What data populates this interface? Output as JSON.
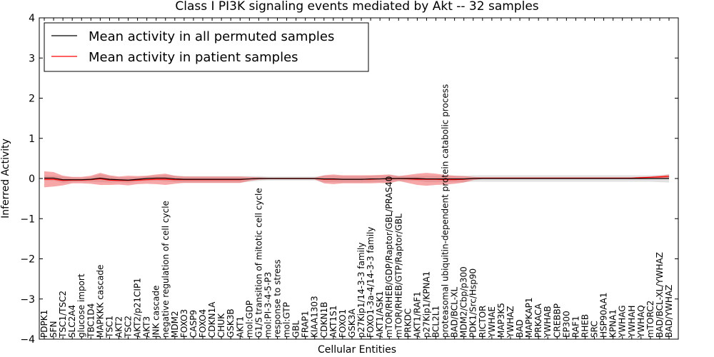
{
  "chart_data": {
    "type": "line",
    "title": "Class I PI3K signaling events mediated by Akt -- 32 samples",
    "xlabel": "Cellular Entities",
    "ylabel": "Inferred Activity",
    "ylim": [
      -4,
      4
    ],
    "yticks": [
      4,
      3,
      2,
      1,
      0,
      -1,
      -2,
      -3,
      -4
    ],
    "ytick_labels": [
      "4",
      "3",
      "2",
      "1",
      "0",
      "−1",
      "−2",
      "−3",
      "−4"
    ],
    "legend_position": "top-left",
    "categories": [
      "PDPK1",
      "SFN",
      "TSC1/TSC2",
      "SLC2A4",
      "glucose import",
      "TBC1D4",
      "MAPKKK cascade",
      "TSC1",
      "AKT2",
      "TSC2",
      "AKT2/p21CIP1",
      "AKT3",
      "JNK cascade",
      "negative regulation of cell cycle",
      "MDM2",
      "FOXO3",
      "CASP9",
      "FOXO4",
      "CDKN1A",
      "CHUK",
      "GSK3B",
      "AKT1",
      "mol:GDP",
      "G1/S transition of mitotic cell cycle",
      "mol:PI-3-4-5-P3",
      "response to stress",
      "mol:GTP",
      "GBL",
      "FRAP1",
      "KIAA1303",
      "CDKN1B",
      "AKT1S1",
      "FOXO1",
      "GSK3A",
      "p27Kip1/14-3-3 family",
      "FOXO1-3a-4/14-3-3 family",
      "AKT1/ASK1",
      "mTOR/RHEB/GDP/Raptor/GBL/PRAS40",
      "mTOR/RHEB/GTP/Raptor/GBL",
      "PRKDC",
      "AKT1/RAF1",
      "p27Kip1/KPNA1",
      "BCL2L1",
      "proteasomal ubiquitin-dependent protein catabolic process",
      "BAD/BCL-XL",
      "MDM2/Cbp/p300",
      "PDK1/Src/Hsp90",
      "RICTOR",
      "YWHAE",
      "MAP3K5",
      "YWHAZ",
      "BAD",
      "MAPKAP1",
      "PRKACA",
      "YWHAB",
      "CREBBP",
      "EP300",
      "RAF1",
      "RHEB",
      "SRC",
      "HSP90AA1",
      "KPNA1",
      "YWHAG",
      "YWHAH",
      "YWHAQ",
      "mTORC2",
      "BAD/BCL-XL/YWHAZ",
      "BAD/YWHAZ"
    ],
    "series": [
      {
        "name": "Mean activity in all permuted samples",
        "color": "#000000",
        "values": [
          0.01,
          0.01,
          -0.03,
          -0.03,
          -0.03,
          -0.02,
          0.01,
          -0.02,
          -0.03,
          -0.04,
          -0.02,
          0.0,
          0.01,
          0.01,
          -0.01,
          -0.02,
          -0.02,
          -0.02,
          -0.02,
          -0.02,
          -0.02,
          -0.02,
          -0.01,
          0.0,
          0.0,
          0.0,
          0.0,
          0.0,
          0.0,
          0.0,
          -0.01,
          -0.01,
          -0.02,
          -0.02,
          -0.02,
          -0.01,
          -0.01,
          0.0,
          0.0,
          0.0,
          0.0,
          -0.01,
          -0.01,
          -0.01,
          -0.01,
          -0.01,
          0.0,
          0.0,
          0.0,
          0.0,
          0.0,
          0.0,
          0.0,
          0.0,
          0.0,
          0.0,
          0.0,
          0.0,
          0.0,
          0.0,
          0.0,
          0.0,
          0.0,
          0.0,
          0.0,
          0.0,
          0.0,
          0.0
        ],
        "band": [
          0.06,
          0.06,
          0.08,
          0.06,
          0.05,
          0.06,
          0.1,
          0.08,
          0.06,
          0.07,
          0.06,
          0.06,
          0.06,
          0.08,
          0.08,
          0.08,
          0.08,
          0.08,
          0.08,
          0.08,
          0.08,
          0.08,
          0.07,
          0.06,
          0.05,
          0.05,
          0.05,
          0.05,
          0.05,
          0.05,
          0.08,
          0.08,
          0.08,
          0.08,
          0.08,
          0.08,
          0.08,
          0.08,
          0.07,
          0.06,
          0.06,
          0.08,
          0.08,
          0.08,
          0.08,
          0.08,
          0.08,
          0.08,
          0.08,
          0.08,
          0.08,
          0.08,
          0.08,
          0.08,
          0.08,
          0.08,
          0.08,
          0.08,
          0.08,
          0.08,
          0.08,
          0.08,
          0.08,
          0.08,
          0.08,
          0.08,
          0.09,
          0.1
        ]
      },
      {
        "name": "Mean activity in patient samples",
        "color": "#ff0000",
        "values": [
          -0.02,
          -0.02,
          -0.05,
          -0.04,
          -0.04,
          -0.03,
          -0.01,
          -0.04,
          -0.05,
          -0.05,
          -0.04,
          -0.03,
          -0.02,
          -0.02,
          -0.03,
          -0.03,
          -0.03,
          -0.03,
          -0.03,
          -0.03,
          -0.03,
          -0.03,
          -0.01,
          0.0,
          0.0,
          0.0,
          0.0,
          0.0,
          0.0,
          0.0,
          -0.02,
          -0.02,
          -0.02,
          -0.02,
          -0.02,
          -0.02,
          -0.01,
          -0.01,
          0.0,
          -0.01,
          -0.02,
          -0.02,
          -0.02,
          -0.03,
          -0.03,
          -0.02,
          0.0,
          0.01,
          0.01,
          0.01,
          0.01,
          0.01,
          0.01,
          0.01,
          0.01,
          0.01,
          0.01,
          0.01,
          0.01,
          0.01,
          0.01,
          0.01,
          0.01,
          0.01,
          0.02,
          0.03,
          0.04,
          0.05
        ],
        "band": [
          0.2,
          0.18,
          0.12,
          0.08,
          0.08,
          0.1,
          0.15,
          0.12,
          0.1,
          0.12,
          0.1,
          0.1,
          0.12,
          0.14,
          0.1,
          0.08,
          0.08,
          0.08,
          0.08,
          0.08,
          0.08,
          0.08,
          0.05,
          0.03,
          0.02,
          0.02,
          0.02,
          0.02,
          0.02,
          0.02,
          0.1,
          0.12,
          0.1,
          0.1,
          0.1,
          0.1,
          0.1,
          0.11,
          0.06,
          0.1,
          0.14,
          0.16,
          0.14,
          0.12,
          0.1,
          0.08,
          0.04,
          0.02,
          0.02,
          0.02,
          0.02,
          0.02,
          0.02,
          0.02,
          0.02,
          0.02,
          0.02,
          0.02,
          0.02,
          0.02,
          0.02,
          0.02,
          0.02,
          0.02,
          0.02,
          0.02,
          0.03,
          0.05
        ]
      }
    ]
  }
}
